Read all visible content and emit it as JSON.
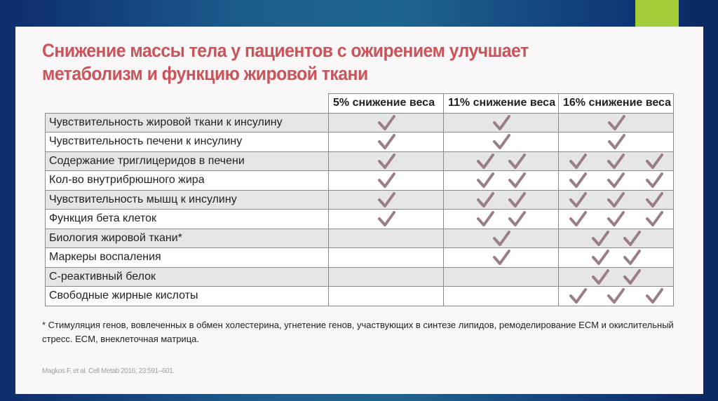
{
  "title": "Снижение массы тела у пациентов с ожирением улучшает метаболизм и функцию жировой ткани",
  "colors": {
    "title": "#c9545a",
    "check": "#9a7e85",
    "accent": "#a5cd39",
    "row_shade": "#e6e6e6"
  },
  "table": {
    "columns": [
      "5% снижение веса",
      "11% снижение веса",
      "16% снижение веса"
    ],
    "check_icon": "checkmark-icon",
    "rows": [
      {
        "label": "Чувствительность жировой ткани к инсулину",
        "checks": [
          1,
          1,
          1
        ]
      },
      {
        "label": "Чувствительность печени к инсулину",
        "checks": [
          1,
          1,
          1
        ]
      },
      {
        "label": "Содержание триглицеридов в печени",
        "checks": [
          1,
          2,
          3
        ]
      },
      {
        "label": "Кол-во внутрибрюшного жира",
        "checks": [
          1,
          2,
          3
        ]
      },
      {
        "label": "Чувствительность мышц к инсулину",
        "checks": [
          1,
          2,
          3
        ]
      },
      {
        "label": "Функция бета клеток",
        "checks": [
          1,
          2,
          3
        ]
      },
      {
        "label": "Биология жировой ткани*",
        "checks": [
          0,
          1,
          2
        ]
      },
      {
        "label": "Маркеры воспаления",
        "checks": [
          0,
          1,
          2
        ]
      },
      {
        "label": "С-реактивный белок",
        "checks": [
          0,
          0,
          2
        ]
      },
      {
        "label": "Свободные жирные кислоты",
        "checks": [
          0,
          0,
          3
        ]
      }
    ]
  },
  "footnote": "* Стимуляция генов, вовлеченных в обмен холестерина, угнетение генов, участвующих в синтезе липидов, ремоделирование ECM и окислительный стресс. ECM, внеклеточная матрица.",
  "reference": "Magkos F, et al. Cell Metab 2016; 23:591–601."
}
